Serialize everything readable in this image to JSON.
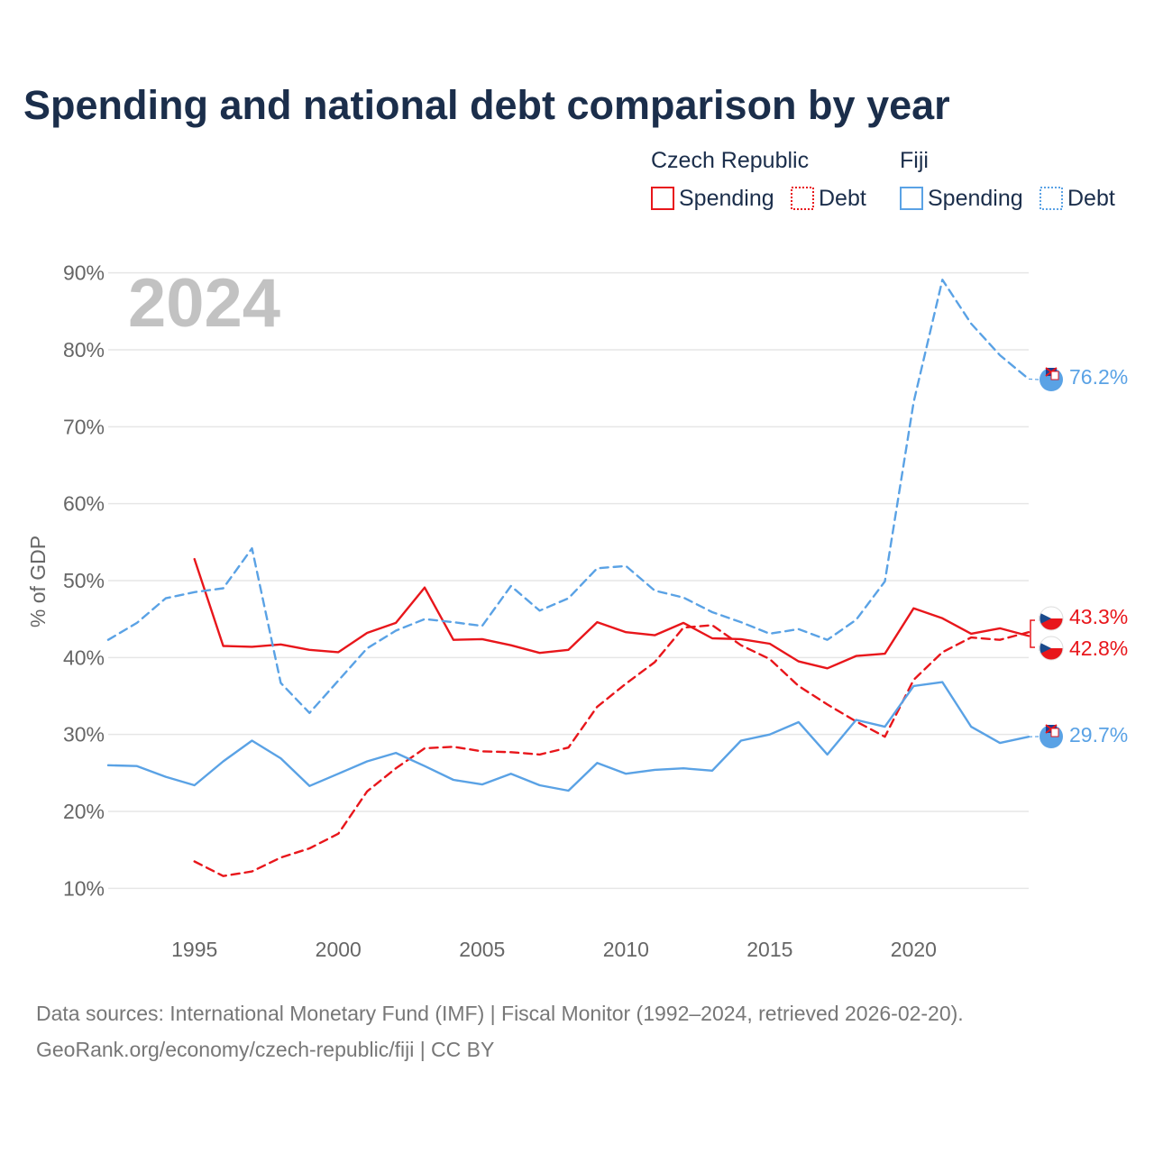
{
  "title": "Spending and national debt comparison by year",
  "watermark_year": "2024",
  "legend": {
    "groups": [
      {
        "name": "Czech Republic",
        "color": "#e8161b",
        "items": [
          {
            "label": "Spending",
            "style": "solid"
          },
          {
            "label": "Debt",
            "style": "dotted"
          }
        ]
      },
      {
        "name": "Fiji",
        "color": "#5aa2e5",
        "items": [
          {
            "label": "Spending",
            "style": "solid"
          },
          {
            "label": "Debt",
            "style": "dotted"
          }
        ]
      }
    ]
  },
  "end_labels": [
    {
      "text": "76.2%",
      "color": "#5aa2e5",
      "flag": "fiji-flag-icon"
    },
    {
      "text": "43.3%",
      "color": "#e8161b",
      "flag": "czech-flag-icon"
    },
    {
      "text": "42.8%",
      "color": "#e8161b",
      "flag": "czech-flag-icon"
    },
    {
      "text": "29.7%",
      "color": "#5aa2e5",
      "flag": "fiji-flag-icon"
    }
  ],
  "source_lines": [
    "Data sources: International Monetary Fund (IMF) | Fiscal Monitor (1992–2024, retrieved 2026-02-20).",
    "GeoRank.org/economy/czech-republic/fiji | CC BY"
  ],
  "chart_data": {
    "type": "line",
    "title": "Spending and national debt comparison by year",
    "xlabel": "",
    "ylabel": "% of GDP",
    "xlim": [
      1992,
      2024
    ],
    "ylim": [
      5,
      95
    ],
    "x_ticks": [
      1995,
      2000,
      2005,
      2010,
      2015,
      2020
    ],
    "y_ticks": [
      10,
      20,
      30,
      40,
      50,
      60,
      70,
      80,
      90
    ],
    "y_tick_labels": [
      "10%",
      "20%",
      "30%",
      "40%",
      "50%",
      "60%",
      "70%",
      "80%",
      "90%"
    ],
    "grid": true,
    "series": [
      {
        "name": "Czech Republic Spending",
        "color": "#e8161b",
        "dash": false,
        "x": [
          1995,
          1996,
          1997,
          1998,
          1999,
          2000,
          2001,
          2002,
          2003,
          2004,
          2005,
          2006,
          2007,
          2008,
          2009,
          2010,
          2011,
          2012,
          2013,
          2014,
          2015,
          2016,
          2017,
          2018,
          2019,
          2020,
          2021,
          2022,
          2023,
          2024
        ],
        "values": [
          52.8,
          41.5,
          41.4,
          41.7,
          41.0,
          40.7,
          43.2,
          44.5,
          49.1,
          42.3,
          42.4,
          41.6,
          40.6,
          41.0,
          44.6,
          43.3,
          42.9,
          44.5,
          42.5,
          42.4,
          41.8,
          39.5,
          38.6,
          40.2,
          40.5,
          46.4,
          45.1,
          43.1,
          43.8,
          42.8
        ]
      },
      {
        "name": "Czech Republic Debt",
        "color": "#e8161b",
        "dash": true,
        "x": [
          1995,
          1996,
          1997,
          1998,
          1999,
          2000,
          2001,
          2002,
          2003,
          2004,
          2005,
          2006,
          2007,
          2008,
          2009,
          2010,
          2011,
          2012,
          2013,
          2014,
          2015,
          2016,
          2017,
          2018,
          2019,
          2020,
          2021,
          2022,
          2023,
          2024
        ],
        "values": [
          13.5,
          11.6,
          12.2,
          14.0,
          15.2,
          17.1,
          22.6,
          25.6,
          28.2,
          28.4,
          27.8,
          27.7,
          27.4,
          28.3,
          33.6,
          36.6,
          39.4,
          43.9,
          44.2,
          41.6,
          39.8,
          36.3,
          33.9,
          31.7,
          29.7,
          37.1,
          40.7,
          42.6,
          42.3,
          43.3
        ]
      },
      {
        "name": "Fiji Spending",
        "color": "#5aa2e5",
        "dash": false,
        "x": [
          1992,
          1993,
          1994,
          1995,
          1996,
          1997,
          1998,
          1999,
          2000,
          2001,
          2002,
          2003,
          2004,
          2005,
          2006,
          2007,
          2008,
          2009,
          2010,
          2011,
          2012,
          2013,
          2014,
          2015,
          2016,
          2017,
          2018,
          2019,
          2020,
          2021,
          2022,
          2023,
          2024
        ],
        "values": [
          26.0,
          25.9,
          24.5,
          23.4,
          26.5,
          29.2,
          26.9,
          23.3,
          24.9,
          26.5,
          27.6,
          25.9,
          24.1,
          23.5,
          24.9,
          23.4,
          22.7,
          26.3,
          24.9,
          25.4,
          25.6,
          25.3,
          29.2,
          30.0,
          31.6,
          27.4,
          31.9,
          31.0,
          36.3,
          36.8,
          31.0,
          28.9,
          29.7
        ]
      },
      {
        "name": "Fiji Debt",
        "color": "#5aa2e5",
        "dash": true,
        "x": [
          1992,
          1993,
          1994,
          1995,
          1996,
          1997,
          1998,
          1999,
          2000,
          2001,
          2002,
          2003,
          2004,
          2005,
          2006,
          2007,
          2008,
          2009,
          2010,
          2011,
          2012,
          2013,
          2014,
          2015,
          2016,
          2017,
          2018,
          2019,
          2020,
          2021,
          2022,
          2023,
          2024
        ],
        "values": [
          42.3,
          44.5,
          47.7,
          48.5,
          49.0,
          54.2,
          36.7,
          32.8,
          37.0,
          41.2,
          43.5,
          45.0,
          44.6,
          44.1,
          49.3,
          46.1,
          47.7,
          51.6,
          51.9,
          48.7,
          47.8,
          45.9,
          44.6,
          43.1,
          43.7,
          42.3,
          44.9,
          49.9,
          73.2,
          89.1,
          83.4,
          79.3,
          76.2
        ]
      }
    ]
  }
}
